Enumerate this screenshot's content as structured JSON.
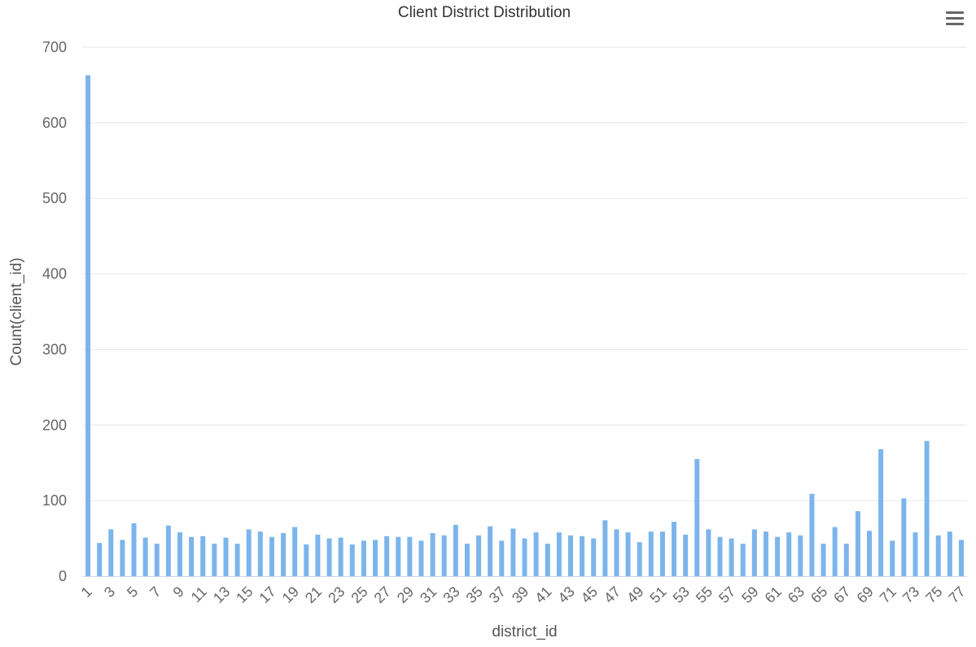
{
  "chart_data": {
    "type": "bar",
    "title": "Client District Distribution",
    "xlabel": "district_id",
    "ylabel": "Count(client_id)",
    "ylim": [
      0,
      700
    ],
    "yticks": [
      0,
      100,
      200,
      300,
      400,
      500,
      600,
      700
    ],
    "grid": true,
    "color": "#7cb5ec",
    "categories": [
      1,
      2,
      3,
      4,
      5,
      6,
      7,
      8,
      9,
      10,
      11,
      12,
      13,
      14,
      15,
      16,
      17,
      18,
      19,
      20,
      21,
      22,
      23,
      24,
      25,
      26,
      27,
      28,
      29,
      30,
      31,
      32,
      33,
      34,
      35,
      36,
      37,
      38,
      39,
      40,
      41,
      42,
      43,
      44,
      45,
      46,
      47,
      48,
      49,
      50,
      51,
      52,
      53,
      54,
      55,
      56,
      57,
      58,
      59,
      60,
      61,
      62,
      63,
      64,
      65,
      66,
      67,
      68,
      69,
      70,
      71,
      72,
      73,
      74,
      75,
      76,
      77
    ],
    "x_tick_labels": [
      "1",
      "3",
      "5",
      "7",
      "9",
      "11",
      "13",
      "15",
      "17",
      "19",
      "21",
      "23",
      "25",
      "27",
      "29",
      "31",
      "33",
      "35",
      "37",
      "39",
      "41",
      "43",
      "45",
      "47",
      "49",
      "51",
      "53",
      "55",
      "57",
      "59",
      "61",
      "63",
      "65",
      "67",
      "69",
      "71",
      "73",
      "75",
      "77"
    ],
    "values": [
      663,
      44,
      62,
      48,
      70,
      51,
      43,
      67,
      58,
      52,
      53,
      43,
      51,
      43,
      62,
      59,
      52,
      57,
      65,
      42,
      55,
      50,
      51,
      42,
      47,
      48,
      53,
      52,
      52,
      47,
      57,
      54,
      68,
      43,
      54,
      66,
      47,
      63,
      50,
      58,
      43,
      58,
      54,
      53,
      50,
      74,
      62,
      58,
      45,
      59,
      59,
      72,
      55,
      155,
      62,
      52,
      50,
      43,
      62,
      59,
      52,
      58,
      54,
      109,
      43,
      65,
      43,
      86,
      60,
      168,
      47,
      103,
      58,
      179,
      54,
      59,
      48
    ]
  },
  "ui": {
    "menu_icon": "hamburger-menu-icon"
  }
}
